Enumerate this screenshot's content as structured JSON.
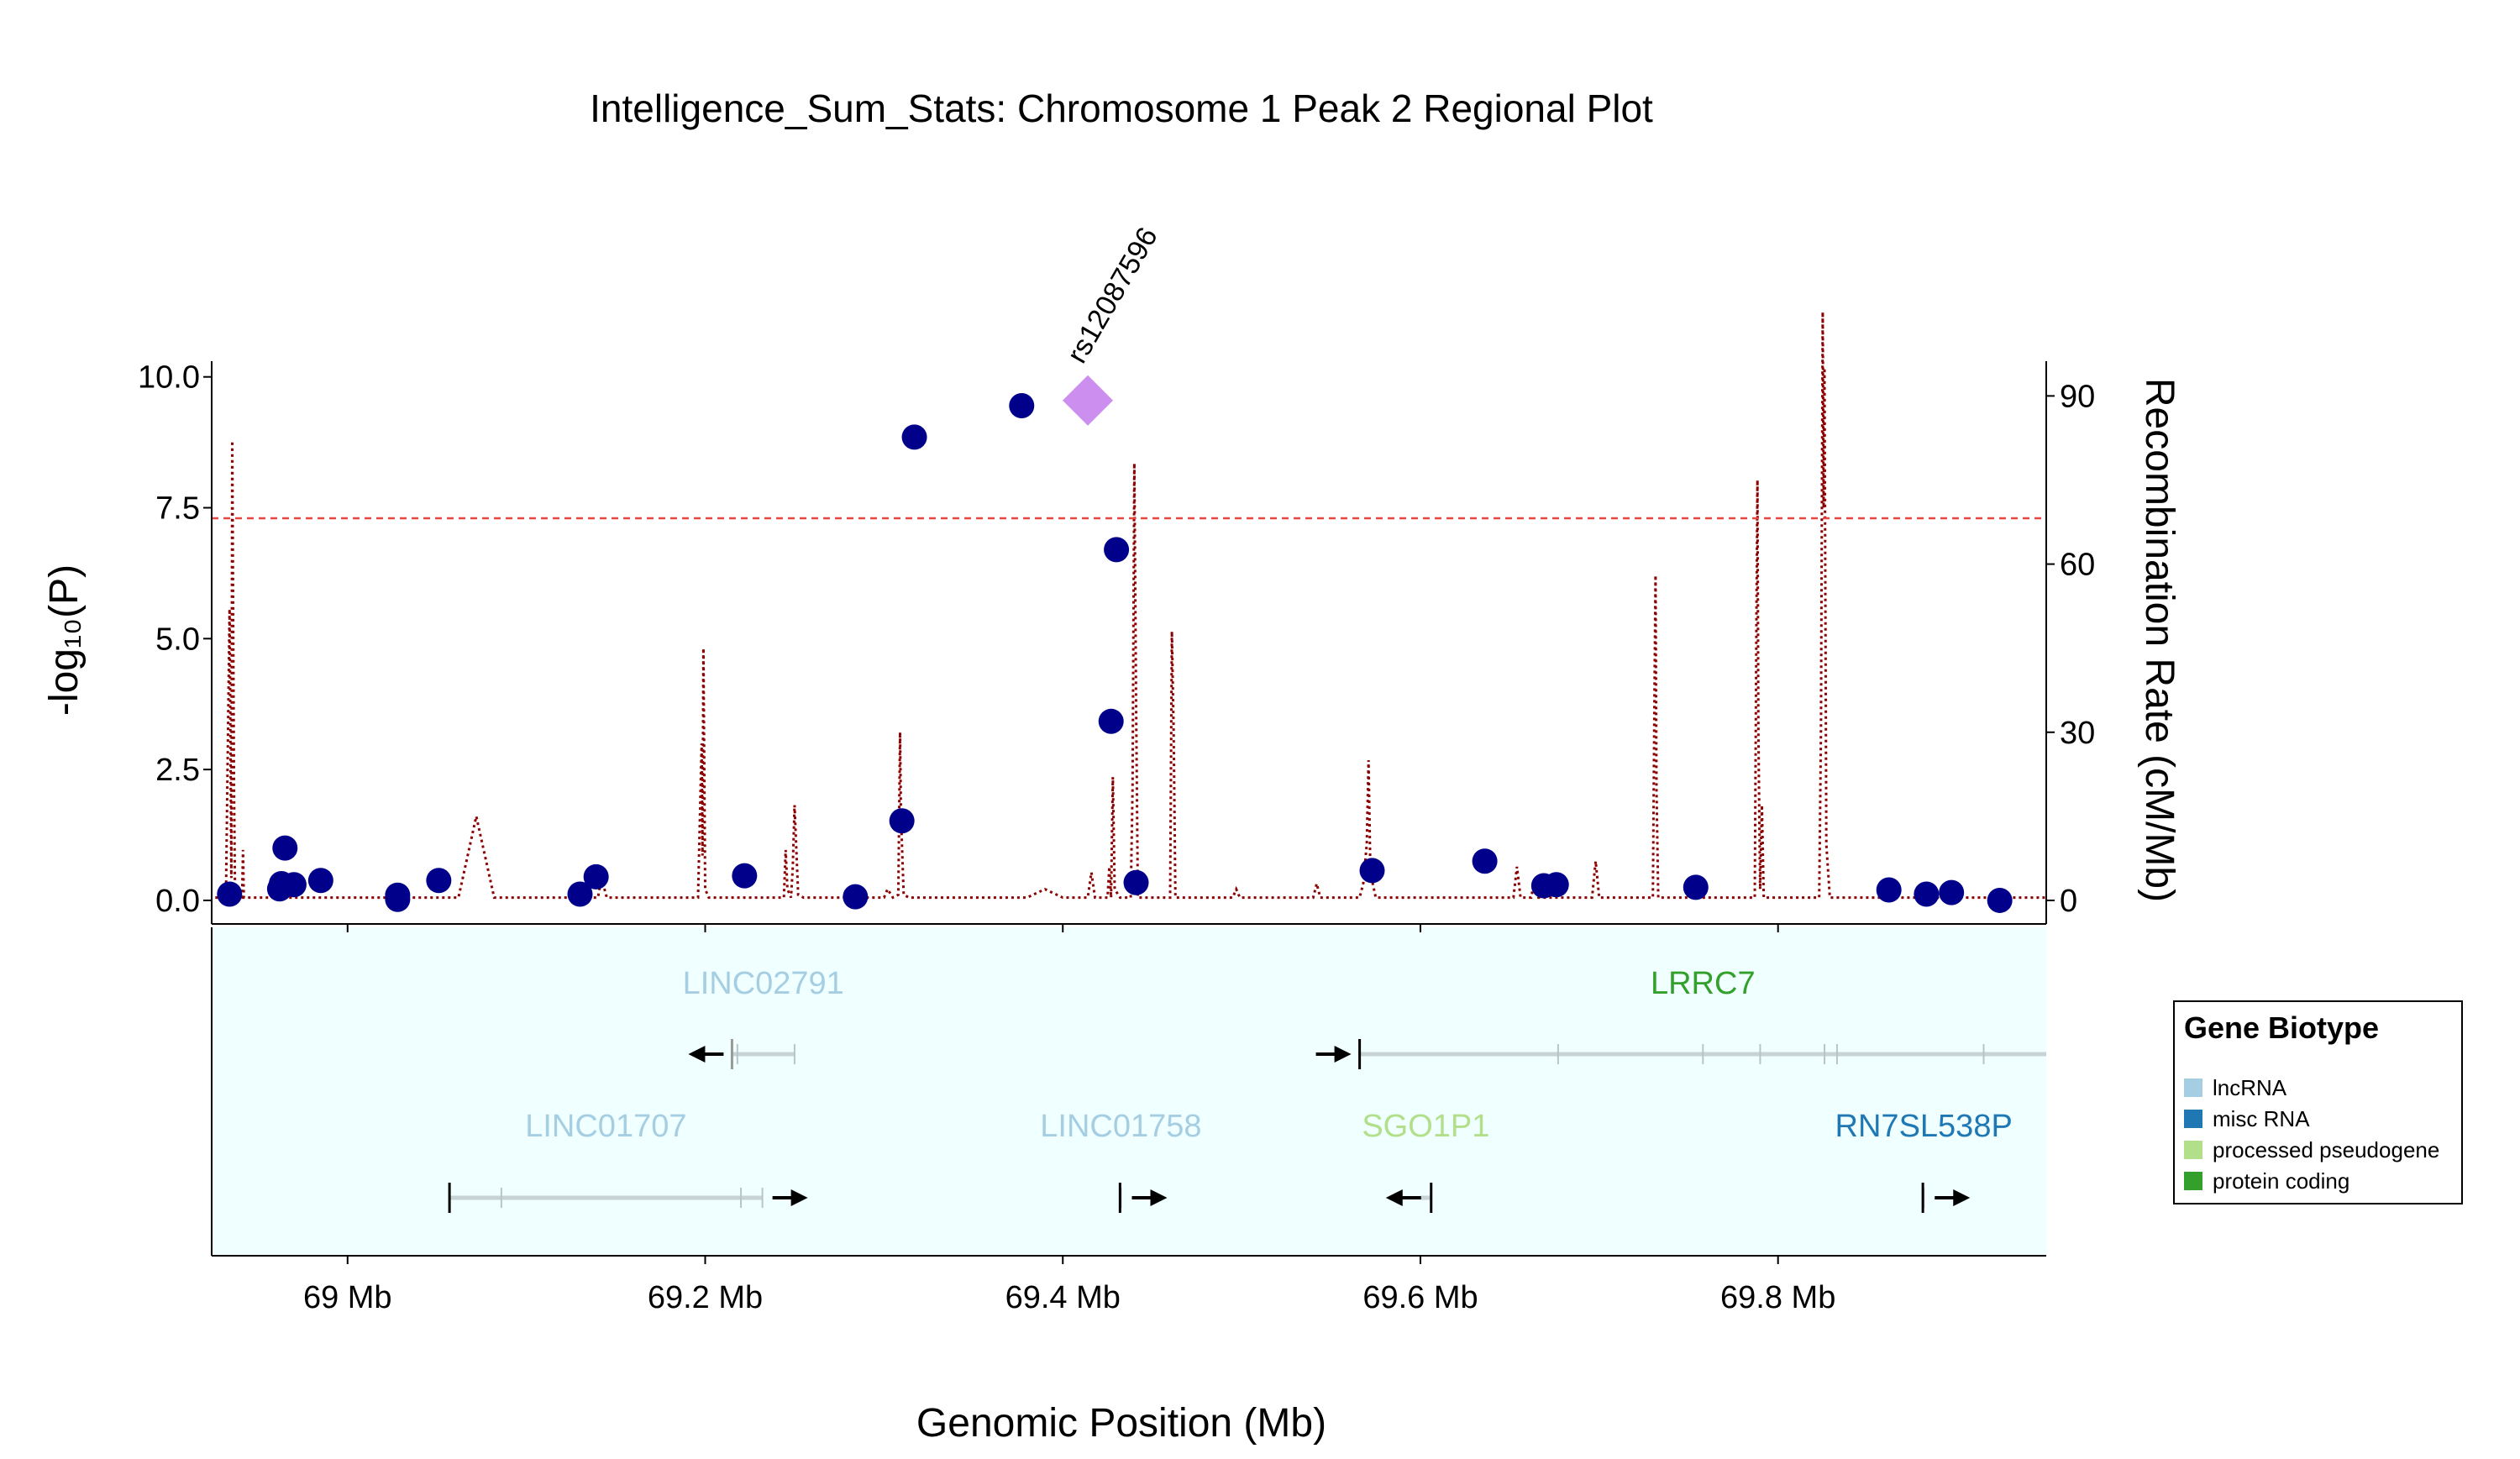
{
  "chart_data": {
    "type": "scatter",
    "title": "Intelligence_Sum_Stats: Chromosome 1 Peak 2 Regional Plot",
    "xlabel": "Genomic Position (Mb)",
    "ylabel": "-log₁₀(P)",
    "y2label": "Recombination Rate (cM/Mb)",
    "xlim": [
      68.924,
      69.95
    ],
    "ylim": [
      -0.45,
      10.3
    ],
    "y2lim": [
      -4.2,
      96.2
    ],
    "x_ticks": [
      {
        "value": 69.0,
        "label": "69 Mb"
      },
      {
        "value": 69.2,
        "label": "69.2 Mb"
      },
      {
        "value": 69.4,
        "label": "69.4 Mb"
      },
      {
        "value": 69.6,
        "label": "69.6 Mb"
      },
      {
        "value": 69.8,
        "label": "69.8 Mb"
      }
    ],
    "y_ticks": [
      {
        "value": 0,
        "label": "0.0"
      },
      {
        "value": 2.5,
        "label": "2.5"
      },
      {
        "value": 5,
        "label": "5.0"
      },
      {
        "value": 7.5,
        "label": "7.5"
      },
      {
        "value": 10,
        "label": "10.0"
      }
    ],
    "y2_ticks": [
      {
        "value": 0,
        "label": "0"
      },
      {
        "value": 30,
        "label": "30"
      },
      {
        "value": 60,
        "label": "60"
      },
      {
        "value": 90,
        "label": "90"
      }
    ],
    "significance_threshold": 7.3,
    "lead_snp": {
      "label": "rs12087596",
      "x": 69.414,
      "y": 9.55,
      "color": "#cc8ff0"
    },
    "point_color": "#00008b",
    "threshold_color": "#e8473f",
    "recomb_color": "#8b0000",
    "points": [
      {
        "x": 68.934,
        "y": 0.12
      },
      {
        "x": 68.962,
        "y": 0.22
      },
      {
        "x": 68.963,
        "y": 0.32
      },
      {
        "x": 68.965,
        "y": 1.0
      },
      {
        "x": 68.97,
        "y": 0.3
      },
      {
        "x": 68.985,
        "y": 0.38
      },
      {
        "x": 69.028,
        "y": 0.02
      },
      {
        "x": 69.028,
        "y": 0.1
      },
      {
        "x": 69.051,
        "y": 0.38
      },
      {
        "x": 69.13,
        "y": 0.12
      },
      {
        "x": 69.139,
        "y": 0.45
      },
      {
        "x": 69.222,
        "y": 0.47
      },
      {
        "x": 69.284,
        "y": 0.07
      },
      {
        "x": 69.31,
        "y": 1.52
      },
      {
        "x": 69.317,
        "y": 8.85
      },
      {
        "x": 69.377,
        "y": 9.45
      },
      {
        "x": 69.427,
        "y": 3.42
      },
      {
        "x": 69.43,
        "y": 6.7
      },
      {
        "x": 69.441,
        "y": 0.34
      },
      {
        "x": 69.573,
        "y": 0.57
      },
      {
        "x": 69.636,
        "y": 0.75
      },
      {
        "x": 69.669,
        "y": 0.28
      },
      {
        "x": 69.676,
        "y": 0.3
      },
      {
        "x": 69.754,
        "y": 0.25
      },
      {
        "x": 69.862,
        "y": 0.2
      },
      {
        "x": 69.883,
        "y": 0.12
      },
      {
        "x": 69.897,
        "y": 0.15
      },
      {
        "x": 69.924,
        "y": 0.0
      }
    ],
    "recombination": [
      [
        68.926,
        0.5
      ],
      [
        68.93,
        0.5
      ],
      [
        68.932,
        1
      ],
      [
        68.934,
        52
      ],
      [
        68.935,
        4
      ],
      [
        68.9355,
        82
      ],
      [
        68.9365,
        20
      ],
      [
        68.937,
        3
      ],
      [
        68.939,
        0.5
      ],
      [
        68.941,
        0.5
      ],
      [
        68.9415,
        9
      ],
      [
        68.942,
        0.5
      ],
      [
        68.96,
        0.5
      ],
      [
        68.97,
        0.5
      ],
      [
        68.985,
        0.5
      ],
      [
        69.062,
        0.5
      ],
      [
        69.072,
        15
      ],
      [
        69.082,
        0.5
      ],
      [
        69.13,
        0.5
      ],
      [
        69.14,
        0.5
      ],
      [
        69.142,
        4
      ],
      [
        69.145,
        0.5
      ],
      [
        69.196,
        0.5
      ],
      [
        69.198,
        28
      ],
      [
        69.1985,
        8
      ],
      [
        69.199,
        45
      ],
      [
        69.2,
        2
      ],
      [
        69.202,
        0.5
      ],
      [
        69.244,
        0.5
      ],
      [
        69.245,
        9
      ],
      [
        69.246,
        2
      ],
      [
        69.248,
        0.5
      ],
      [
        69.249,
        6
      ],
      [
        69.25,
        17
      ],
      [
        69.252,
        1
      ],
      [
        69.255,
        0.5
      ],
      [
        69.3,
        0.5
      ],
      [
        69.302,
        2
      ],
      [
        69.305,
        0.5
      ],
      [
        69.308,
        1
      ],
      [
        69.309,
        30
      ],
      [
        69.3095,
        15
      ],
      [
        69.311,
        1
      ],
      [
        69.314,
        0.5
      ],
      [
        69.38,
        0.5
      ],
      [
        69.39,
        2
      ],
      [
        69.4,
        0.5
      ],
      [
        69.414,
        0.5
      ],
      [
        69.416,
        5
      ],
      [
        69.418,
        0.5
      ],
      [
        69.425,
        0.5
      ],
      [
        69.426,
        6
      ],
      [
        69.427,
        0.5
      ],
      [
        69.428,
        22
      ],
      [
        69.429,
        2
      ],
      [
        69.432,
        0.5
      ],
      [
        69.438,
        0.5
      ],
      [
        69.439,
        20
      ],
      [
        69.44,
        78
      ],
      [
        69.441,
        35
      ],
      [
        69.442,
        0.5
      ],
      [
        69.46,
        0.5
      ],
      [
        69.461,
        48
      ],
      [
        69.462,
        30
      ],
      [
        69.463,
        0.5
      ],
      [
        69.495,
        0.5
      ],
      [
        69.497,
        2
      ],
      [
        69.499,
        0.5
      ],
      [
        69.54,
        0.5
      ],
      [
        69.542,
        3
      ],
      [
        69.544,
        0.5
      ],
      [
        69.566,
        0.5
      ],
      [
        69.568,
        3
      ],
      [
        69.57,
        10
      ],
      [
        69.571,
        25
      ],
      [
        69.572,
        5
      ],
      [
        69.575,
        0.5
      ],
      [
        69.652,
        0.5
      ],
      [
        69.654,
        6
      ],
      [
        69.656,
        0.5
      ],
      [
        69.662,
        0.5
      ],
      [
        69.664,
        4
      ],
      [
        69.666,
        0.5
      ],
      [
        69.696,
        0.5
      ],
      [
        69.698,
        7
      ],
      [
        69.7,
        0.5
      ],
      [
        69.73,
        0.5
      ],
      [
        69.731,
        40
      ],
      [
        69.7315,
        58
      ],
      [
        69.732,
        20
      ],
      [
        69.733,
        0.5
      ],
      [
        69.787,
        0.5
      ],
      [
        69.788,
        55
      ],
      [
        69.7885,
        75
      ],
      [
        69.789,
        30
      ],
      [
        69.79,
        2
      ],
      [
        69.791,
        17
      ],
      [
        69.792,
        0.5
      ],
      [
        69.823,
        0.5
      ],
      [
        69.824,
        30
      ],
      [
        69.825,
        105
      ],
      [
        69.8255,
        70
      ],
      [
        69.826,
        95
      ],
      [
        69.827,
        10
      ],
      [
        69.829,
        0.5
      ],
      [
        69.86,
        0.5
      ],
      [
        69.9,
        0.5
      ],
      [
        69.95,
        0.5
      ]
    ],
    "genes": [
      {
        "name": "LINC02791",
        "start": 69.215,
        "end": 69.25,
        "strand": "-",
        "row": 1,
        "biotype": "lncRNA",
        "exons": [
          69.215,
          69.218,
          69.25
        ]
      },
      {
        "name": "LRRC7",
        "start": 69.566,
        "end": 69.95,
        "strand": "+",
        "row": 1,
        "biotype": "protein coding",
        "exons": [
          69.566,
          69.677,
          69.758,
          69.79,
          69.826,
          69.833,
          69.915
        ]
      },
      {
        "name": "LINC01707",
        "start": 69.057,
        "end": 69.232,
        "strand": "+",
        "row": 2,
        "biotype": "lncRNA",
        "exons": [
          69.057,
          69.086,
          69.22,
          69.232
        ]
      },
      {
        "name": "LINC01758",
        "start": 69.432,
        "end": 69.433,
        "strand": "+",
        "row": 2,
        "biotype": "lncRNA",
        "exons": [
          69.4325
        ]
      },
      {
        "name": "SGO1P1",
        "start": 69.6,
        "end": 69.606,
        "strand": "-",
        "row": 2,
        "biotype": "processed pseudogene",
        "exons": [
          69.606
        ]
      },
      {
        "name": "RN7SL538P",
        "start": 69.881,
        "end": 69.882,
        "strand": "+",
        "row": 2,
        "biotype": "misc RNA",
        "exons": [
          69.8815
        ]
      }
    ],
    "legend": {
      "title": "Gene Biotype",
      "placement": "right",
      "items": [
        {
          "label": "lncRNA",
          "color": "#a6cee3"
        },
        {
          "label": "misc RNA",
          "color": "#1f78b4"
        },
        {
          "label": "processed pseudogene",
          "color": "#b2df8a"
        },
        {
          "label": "protein coding",
          "color": "#33a02c"
        }
      ]
    }
  }
}
